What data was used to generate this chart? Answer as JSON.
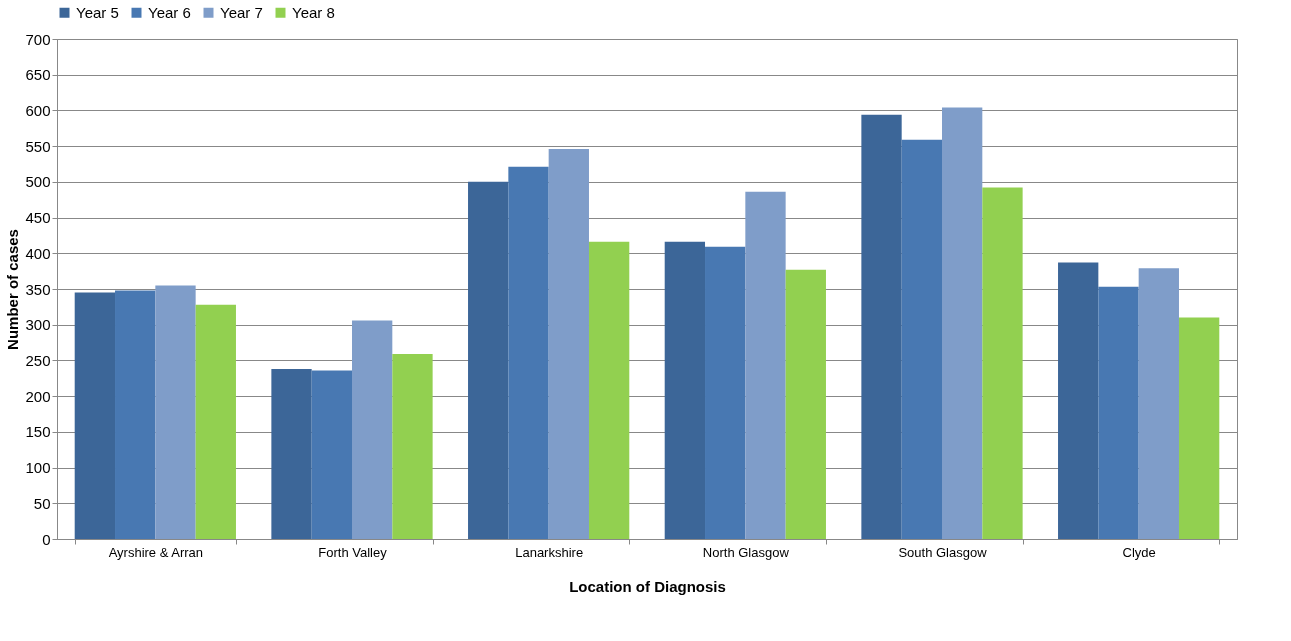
{
  "chart_data": {
    "type": "bar",
    "xlabel": "Location of Diagnosis",
    "ylabel": "Number of cases",
    "categories": [
      "Ayrshire & Arran",
      "Forth Valley",
      "Lanarkshire",
      "North Glasgow",
      "South Glasgow",
      "Clyde"
    ],
    "series": [
      {
        "name": "Year 5",
        "color": "#3c6698",
        "values": [
          345,
          238,
          500,
          416,
          594,
          387
        ]
      },
      {
        "name": "Year 6",
        "color": "#4878b2",
        "values": [
          348,
          236,
          521,
          409,
          559,
          353
        ]
      },
      {
        "name": "Year 7",
        "color": "#7f9dc9",
        "values": [
          355,
          306,
          546,
          486,
          604,
          379
        ]
      },
      {
        "name": "Year 8",
        "color": "#92d050",
        "values": [
          328,
          259,
          416,
          377,
          492,
          310
        ]
      }
    ],
    "ylim": [
      0,
      700
    ],
    "yticks": [
      0,
      50,
      100,
      150,
      200,
      250,
      300,
      350,
      400,
      450,
      500,
      550,
      600,
      650,
      700
    ],
    "grid": "y",
    "legend": "top"
  }
}
